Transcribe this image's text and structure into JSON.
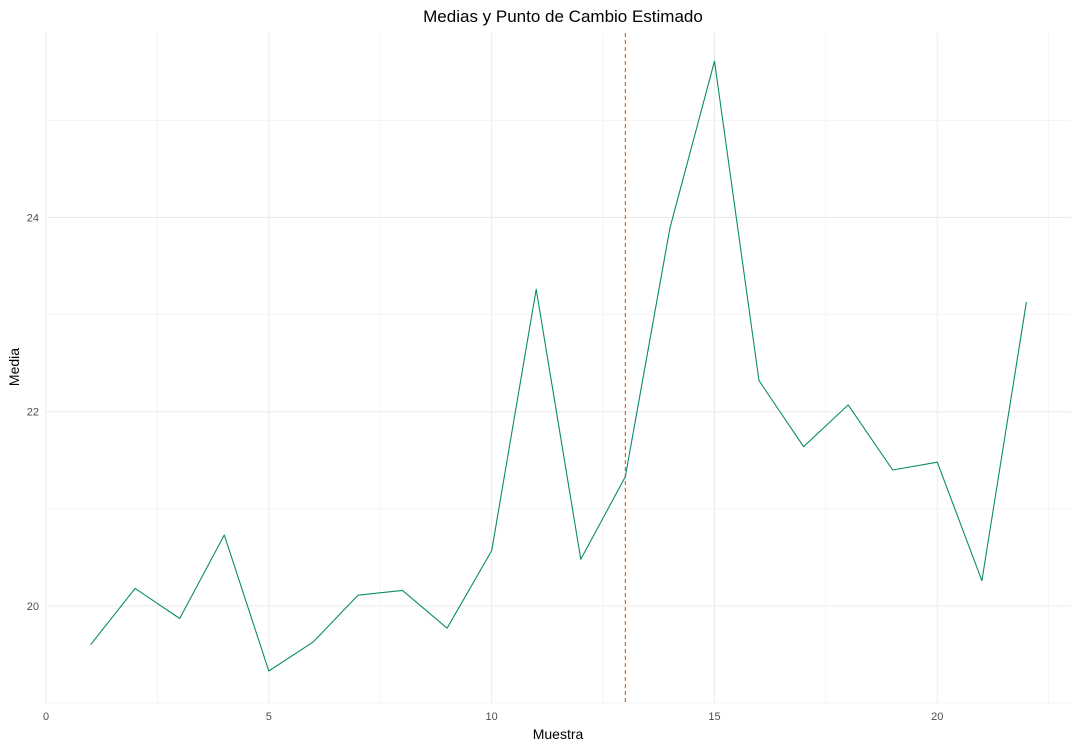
{
  "chart_data": {
    "type": "line",
    "title": "Medias y Punto de Cambio Estimado",
    "xlabel": "Muestra",
    "ylabel": "Media",
    "xlim": [
      0,
      23
    ],
    "ylim": [
      19,
      25.9
    ],
    "x_ticks": [
      0,
      5,
      10,
      15,
      20
    ],
    "x_tick_labels": [
      "0",
      "5",
      "10",
      "15",
      "20"
    ],
    "y_ticks": [
      20,
      22,
      24
    ],
    "y_tick_labels": [
      "20",
      "22",
      "24"
    ],
    "grid": true,
    "legend": "none",
    "series": [
      {
        "color": "#0a8c6a",
        "x": [
          1,
          2,
          3,
          4,
          5,
          6,
          7,
          8,
          9,
          10,
          11,
          12,
          13,
          14,
          15,
          16,
          17,
          18,
          19,
          20,
          21,
          22
        ],
        "y": [
          19.6,
          20.18,
          19.87,
          20.73,
          19.33,
          19.63,
          20.11,
          20.16,
          19.77,
          20.57,
          23.26,
          20.48,
          21.33,
          23.89,
          25.61,
          22.32,
          21.64,
          22.07,
          21.4,
          21.48,
          20.26,
          23.13
        ]
      }
    ],
    "vlines": [
      {
        "x": 13,
        "color": "#d55e00",
        "style": "dashed"
      }
    ]
  }
}
